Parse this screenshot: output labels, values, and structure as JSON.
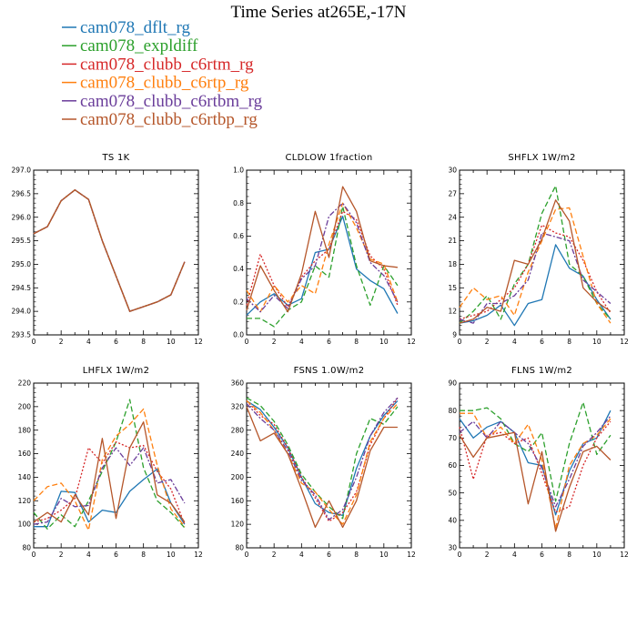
{
  "title": "Time Series at265E,-17N",
  "legend": [
    {
      "label": "cam078_dflt_rg",
      "color": "#1f77b4",
      "dash": ""
    },
    {
      "label": "cam078_expldiff",
      "color": "#2ca02c",
      "dash": "6,3"
    },
    {
      "label": "cam078_clubb_c6rtm_rg",
      "color": "#d62728",
      "dash": "2,2"
    },
    {
      "label": "cam078_clubb_c6rtp_rg",
      "color": "#ff7f0e",
      "dash": "6,3"
    },
    {
      "label": "cam078_clubb_c6rtbm_rg",
      "color": "#6a3d9a",
      "dash": "6,2,2,2"
    },
    {
      "label": "cam078_clubb_c6rtbp_rg",
      "color": "#b5562a",
      "dash": ""
    }
  ],
  "chart_data": [
    {
      "type": "line",
      "title": "TS 1K",
      "xlim": [
        0,
        12
      ],
      "ylim": [
        293.5,
        297.0
      ],
      "xticks": [
        0,
        2,
        4,
        6,
        8,
        10,
        12
      ],
      "yticks": [
        293.5,
        294.0,
        294.5,
        295.0,
        295.5,
        296.0,
        296.5,
        297.0
      ],
      "ytick_labels": [
        "293.5",
        "294.0",
        "294.5",
        "295.0",
        "295.5",
        "296.0",
        "296.5",
        "297.0"
      ],
      "x": [
        0,
        1,
        2,
        3,
        4,
        5,
        6,
        7,
        8,
        9,
        10,
        11
      ],
      "series": [
        {
          "name": "cam078_dflt_rg",
          "values": [
            295.65,
            295.8,
            296.35,
            296.58,
            296.38,
            295.5,
            294.75,
            294.0,
            294.1,
            294.2,
            294.35,
            295.05
          ]
        },
        {
          "name": "cam078_expldiff",
          "values": [
            295.65,
            295.8,
            296.35,
            296.58,
            296.38,
            295.5,
            294.75,
            294.0,
            294.1,
            294.2,
            294.35,
            295.05
          ]
        },
        {
          "name": "cam078_clubb_c6rtm_rg",
          "values": [
            295.65,
            295.8,
            296.35,
            296.58,
            296.38,
            295.5,
            294.75,
            294.0,
            294.1,
            294.2,
            294.35,
            295.05
          ]
        },
        {
          "name": "cam078_clubb_c6rtp_rg",
          "values": [
            295.65,
            295.8,
            296.35,
            296.58,
            296.38,
            295.5,
            294.75,
            294.0,
            294.1,
            294.2,
            294.35,
            295.05
          ]
        },
        {
          "name": "cam078_clubb_c6rtbm_rg",
          "values": [
            295.65,
            295.8,
            296.35,
            296.58,
            296.38,
            295.5,
            294.75,
            294.0,
            294.1,
            294.2,
            294.35,
            295.05
          ]
        },
        {
          "name": "cam078_clubb_c6rtbp_rg",
          "values": [
            295.65,
            295.8,
            296.35,
            296.58,
            296.38,
            295.5,
            294.75,
            294.0,
            294.1,
            294.2,
            294.35,
            295.05
          ]
        }
      ]
    },
    {
      "type": "line",
      "title": "CLDLOW 1fraction",
      "xlim": [
        0,
        12
      ],
      "ylim": [
        0.0,
        1.0
      ],
      "xticks": [
        0,
        2,
        4,
        6,
        8,
        10,
        12
      ],
      "yticks": [
        0.0,
        0.2,
        0.4,
        0.6,
        0.8,
        1.0
      ],
      "ytick_labels": [
        "0.0",
        "0.2",
        "0.4",
        "0.6",
        "0.8",
        "1.0"
      ],
      "x": [
        0,
        1,
        2,
        3,
        4,
        5,
        6,
        7,
        8,
        9,
        10,
        11
      ],
      "series": [
        {
          "name": "cam078_dflt_rg",
          "values": [
            0.12,
            0.2,
            0.25,
            0.18,
            0.22,
            0.5,
            0.52,
            0.72,
            0.4,
            0.33,
            0.28,
            0.13
          ]
        },
        {
          "name": "cam078_expldiff",
          "values": [
            0.1,
            0.1,
            0.05,
            0.15,
            0.2,
            0.42,
            0.35,
            0.78,
            0.42,
            0.18,
            0.42,
            0.3
          ]
        },
        {
          "name": "cam078_clubb_c6rtm_rg",
          "values": [
            0.18,
            0.49,
            0.3,
            0.17,
            0.35,
            0.45,
            0.52,
            0.75,
            0.7,
            0.48,
            0.4,
            0.18
          ]
        },
        {
          "name": "cam078_clubb_c6rtp_rg",
          "values": [
            0.27,
            0.14,
            0.3,
            0.2,
            0.3,
            0.25,
            0.55,
            0.8,
            0.65,
            0.46,
            0.43,
            0.2
          ]
        },
        {
          "name": "cam078_clubb_c6rtbm_rg",
          "values": [
            0.22,
            0.14,
            0.24,
            0.16,
            0.34,
            0.42,
            0.72,
            0.8,
            0.68,
            0.44,
            0.36,
            0.2
          ]
        },
        {
          "name": "cam078_clubb_c6rtbp_rg",
          "values": [
            0.15,
            0.42,
            0.27,
            0.14,
            0.37,
            0.75,
            0.47,
            0.9,
            0.75,
            0.45,
            0.42,
            0.41
          ]
        }
      ]
    },
    {
      "type": "line",
      "title": "SHFLX 1W/m2",
      "xlim": [
        0,
        12
      ],
      "ylim": [
        9,
        30
      ],
      "xticks": [
        0,
        2,
        4,
        6,
        8,
        10,
        12
      ],
      "yticks": [
        9,
        12,
        15,
        18,
        21,
        24,
        27,
        30
      ],
      "ytick_labels": [
        "9",
        "12",
        "15",
        "18",
        "21",
        "24",
        "27",
        "30"
      ],
      "x": [
        0,
        1,
        2,
        3,
        4,
        5,
        6,
        7,
        8,
        9,
        10,
        11
      ],
      "series": [
        {
          "name": "cam078_dflt_rg",
          "values": [
            10.5,
            10.8,
            11.5,
            12.8,
            10.2,
            13.0,
            13.5,
            20.5,
            17.5,
            16.5,
            13.5,
            11.0
          ]
        },
        {
          "name": "cam078_expldiff",
          "values": [
            10.5,
            12.0,
            14.0,
            11.0,
            15.5,
            18.0,
            24.5,
            28.0,
            18.0,
            16.5,
            13.0,
            11.0
          ]
        },
        {
          "name": "cam078_clubb_c6rtm_rg",
          "values": [
            11.0,
            11.5,
            12.0,
            13.5,
            15.0,
            18.0,
            23.0,
            22.0,
            21.5,
            18.5,
            14.5,
            11.8
          ]
        },
        {
          "name": "cam078_clubb_c6rtp_rg",
          "values": [
            12.5,
            15.0,
            13.5,
            14.0,
            11.5,
            17.0,
            21.0,
            25.0,
            25.2,
            19.0,
            13.0,
            10.5
          ]
        },
        {
          "name": "cam078_clubb_c6rtbm_rg",
          "values": [
            11.0,
            10.5,
            13.0,
            13.0,
            14.0,
            16.0,
            22.0,
            21.5,
            21.0,
            16.0,
            14.5,
            13.0
          ]
        },
        {
          "name": "cam078_clubb_c6rtbp_rg",
          "values": [
            10.5,
            11.0,
            12.5,
            12.0,
            18.5,
            18.0,
            21.2,
            26.2,
            23.5,
            15.0,
            13.2,
            12.0
          ]
        }
      ]
    },
    {
      "type": "line",
      "title": "LHFLX 1W/m2",
      "xlim": [
        0,
        12
      ],
      "ylim": [
        80,
        220
      ],
      "xticks": [
        0,
        2,
        4,
        6,
        8,
        10,
        12
      ],
      "yticks": [
        80,
        100,
        120,
        140,
        160,
        180,
        200,
        220
      ],
      "ytick_labels": [
        "80",
        "100",
        "120",
        "140",
        "160",
        "180",
        "200",
        "220"
      ],
      "x": [
        0,
        1,
        2,
        3,
        4,
        5,
        6,
        7,
        8,
        9,
        10,
        11
      ],
      "series": [
        {
          "name": "cam078_dflt_rg",
          "values": [
            98,
            98,
            128,
            127,
            102,
            112,
            110,
            128,
            138,
            147,
            118,
            100
          ]
        },
        {
          "name": "cam078_expldiff",
          "values": [
            110,
            96,
            108,
            98,
            120,
            145,
            170,
            206,
            148,
            120,
            110,
            97
          ]
        },
        {
          "name": "cam078_clubb_c6rtm_rg",
          "values": [
            102,
            105,
            112,
            122,
            165,
            152,
            170,
            165,
            167,
            145,
            130,
            100
          ]
        },
        {
          "name": "cam078_clubb_c6rtp_rg",
          "values": [
            120,
            132,
            135,
            120,
            95,
            155,
            175,
            185,
            198,
            150,
            113,
            98
          ]
        },
        {
          "name": "cam078_clubb_c6rtbm_rg",
          "values": [
            100,
            102,
            122,
            115,
            116,
            148,
            165,
            150,
            165,
            135,
            138,
            118
          ]
        },
        {
          "name": "cam078_clubb_c6rtbp_rg",
          "values": [
            102,
            110,
            102,
            125,
            108,
            173,
            105,
            165,
            187,
            125,
            118,
            102
          ]
        }
      ]
    },
    {
      "type": "line",
      "title": "FSNS 1.0W/m2",
      "xlim": [
        0,
        12
      ],
      "ylim": [
        80,
        360
      ],
      "xticks": [
        0,
        2,
        4,
        6,
        8,
        10,
        12
      ],
      "yticks": [
        80,
        120,
        160,
        200,
        240,
        280,
        320,
        360
      ],
      "ytick_labels": [
        "80",
        "120",
        "160",
        "200",
        "240",
        "280",
        "320",
        "360"
      ],
      "x": [
        0,
        1,
        2,
        3,
        4,
        5,
        6,
        7,
        8,
        9,
        10,
        11
      ],
      "series": [
        {
          "name": "cam078_dflt_rg",
          "values": [
            330,
            315,
            285,
            250,
            200,
            155,
            140,
            135,
            215,
            270,
            305,
            330
          ]
        },
        {
          "name": "cam078_expldiff",
          "values": [
            335,
            322,
            295,
            255,
            205,
            175,
            150,
            130,
            240,
            300,
            290,
            320
          ]
        },
        {
          "name": "cam078_clubb_c6rtm_rg",
          "values": [
            330,
            305,
            290,
            250,
            200,
            165,
            125,
            140,
            175,
            255,
            300,
            335
          ]
        },
        {
          "name": "cam078_clubb_c6rtp_rg",
          "values": [
            330,
            310,
            280,
            240,
            190,
            175,
            145,
            120,
            170,
            260,
            300,
            325
          ]
        },
        {
          "name": "cam078_clubb_c6rtbm_rg",
          "values": [
            325,
            300,
            280,
            245,
            195,
            170,
            128,
            145,
            200,
            270,
            310,
            335
          ]
        },
        {
          "name": "cam078_clubb_c6rtbp_rg",
          "values": [
            320,
            262,
            275,
            240,
            180,
            115,
            160,
            115,
            160,
            245,
            285,
            285
          ]
        }
      ]
    },
    {
      "type": "line",
      "title": "FLNS 1W/m2",
      "xlim": [
        0,
        12
      ],
      "ylim": [
        30,
        90
      ],
      "xticks": [
        0,
        2,
        4,
        6,
        8,
        10,
        12
      ],
      "yticks": [
        30,
        40,
        50,
        60,
        70,
        80,
        90
      ],
      "ytick_labels": [
        "30",
        "40",
        "50",
        "60",
        "70",
        "80",
        "90"
      ],
      "x": [
        0,
        1,
        2,
        3,
        4,
        5,
        6,
        7,
        8,
        9,
        10,
        11
      ],
      "series": [
        {
          "name": "cam078_dflt_rg",
          "values": [
            77,
            70,
            74,
            76,
            72,
            61,
            60,
            42,
            58,
            68,
            70,
            80
          ]
        },
        {
          "name": "cam078_expldiff",
          "values": [
            80,
            80,
            81,
            77,
            68,
            65,
            72,
            47,
            68,
            83,
            64,
            71
          ]
        },
        {
          "name": "cam078_clubb_c6rtm_rg",
          "values": [
            74,
            55,
            71,
            72,
            68,
            70,
            57,
            43,
            45,
            60,
            70,
            76
          ]
        },
        {
          "name": "cam078_clubb_c6rtp_rg",
          "values": [
            79,
            79,
            70,
            74,
            68,
            75,
            62,
            37,
            60,
            68,
            71,
            77
          ]
        },
        {
          "name": "cam078_clubb_c6rtbm_rg",
          "values": [
            72,
            76,
            70,
            76,
            72,
            68,
            59,
            45,
            55,
            67,
            72,
            78
          ]
        },
        {
          "name": "cam078_clubb_c6rtbp_rg",
          "values": [
            71,
            63,
            70,
            71,
            72,
            46,
            65,
            36,
            52,
            65,
            67,
            62
          ]
        }
      ]
    }
  ]
}
